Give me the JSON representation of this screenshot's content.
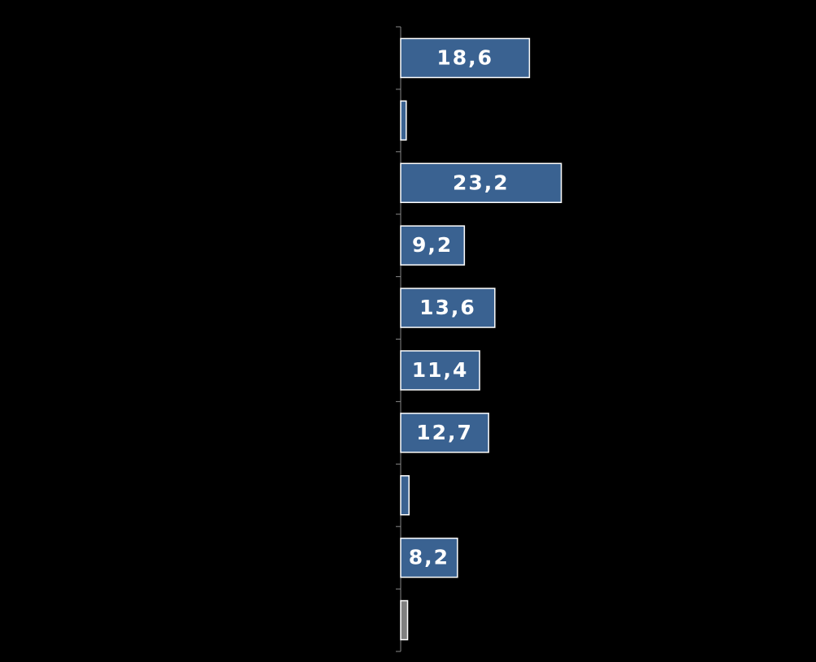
{
  "chart_data": {
    "type": "hbar",
    "values": [
      18.6,
      0.8,
      23.2,
      9.2,
      13.6,
      11.4,
      12.7,
      1.2,
      8.2,
      1.0
    ],
    "value_labels": [
      "18,6",
      null,
      "23,2",
      "9,2",
      "13,6",
      "11,4",
      "12,7",
      null,
      "8,2",
      null
    ],
    "colors": [
      "#3a6291",
      "#3a6291",
      "#3a6291",
      "#3a6291",
      "#3a6291",
      "#3a6291",
      "#3a6291",
      "#3a6291",
      "#3a6291",
      "#808080"
    ],
    "xlim": [
      0,
      60
    ]
  }
}
